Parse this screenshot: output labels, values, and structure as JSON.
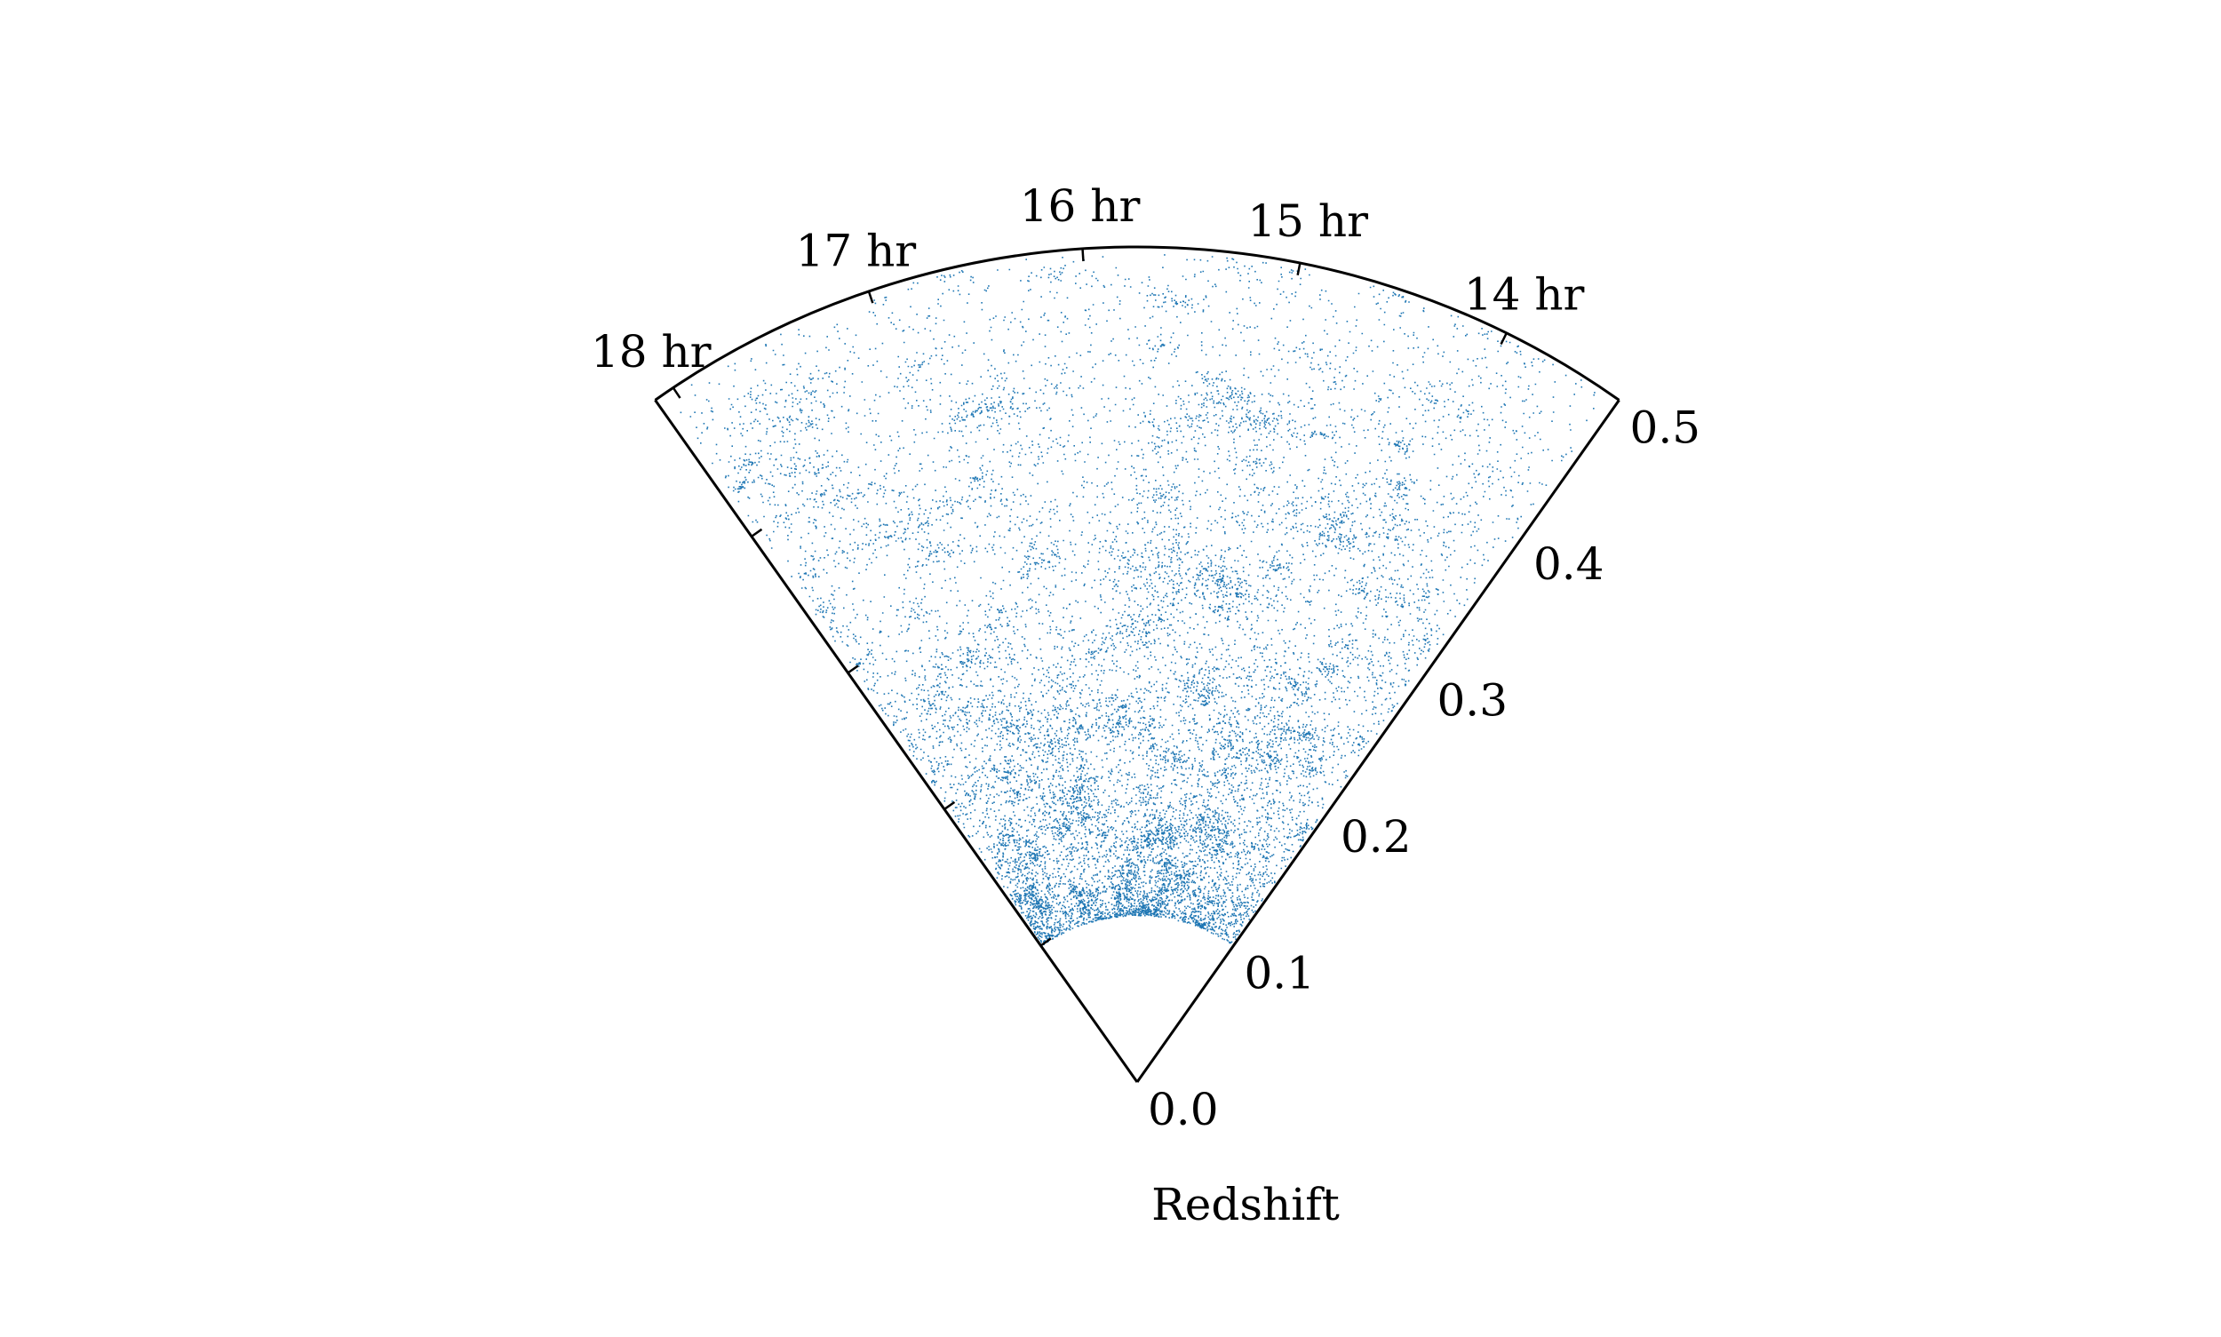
{
  "chart_data": {
    "type": "scatter",
    "projection": "polar-wedge",
    "title": "",
    "xlabel": "",
    "ylabel": "Redshift",
    "angular_axis": {
      "unit": "hr",
      "range": [
        13.4,
        18.1
      ],
      "ticks": [
        14,
        15,
        16,
        17,
        18
      ],
      "tick_labels": [
        "14 hr",
        "15 hr",
        "16 hr",
        "17 hr",
        "18 hr"
      ]
    },
    "radial_axis": {
      "range": [
        0.0,
        0.5
      ],
      "ticks": [
        0.0,
        0.1,
        0.2,
        0.3,
        0.4,
        0.5
      ],
      "tick_labels": [
        "0.0",
        "0.1",
        "0.2",
        "0.3",
        "0.4",
        "0.5"
      ]
    },
    "grid": false,
    "legend": "none",
    "series": [
      {
        "color": "#1f77b4",
        "data_range": {
          "redshift": [
            0.1,
            0.5
          ],
          "ra_hr": [
            13.4,
            18.1
          ]
        },
        "peak_density_redshift": [
          0.12,
          0.25
        ],
        "approx_points": 14000
      }
    ]
  }
}
